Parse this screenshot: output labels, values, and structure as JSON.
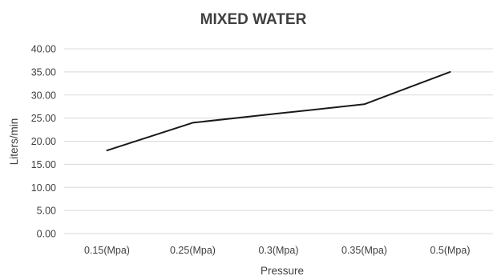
{
  "chart_data": {
    "type": "line",
    "title": "MIXED WATER",
    "xlabel": "Pressure",
    "ylabel": "Liters/min",
    "categories": [
      "0.15(Mpa)",
      "0.25(Mpa)",
      "0.3(Mpa)",
      "0.35(Mpa)",
      "0.5(Mpa)"
    ],
    "series": [
      {
        "values": [
          18,
          24,
          26,
          28,
          35
        ]
      }
    ],
    "ylim": [
      0,
      40
    ],
    "yticks": [
      "0.00",
      "5.00",
      "10.00",
      "15.00",
      "20.00",
      "25.00",
      "30.00",
      "35.00",
      "40.00"
    ],
    "grid": true,
    "legend": "none",
    "line_color": "#1a1a1a",
    "grid_color": "#d9d9d9",
    "text_color": "#404040"
  }
}
